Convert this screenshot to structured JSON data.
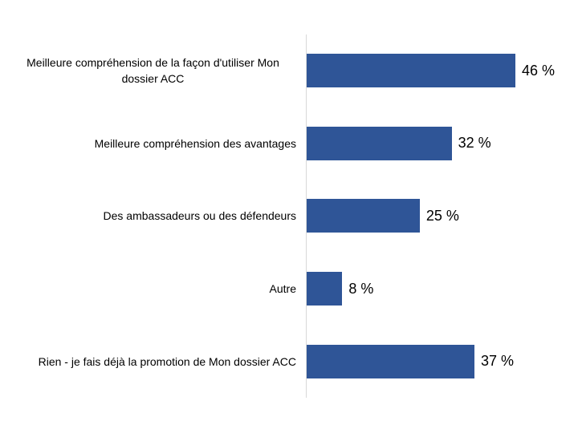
{
  "chart_data": {
    "type": "bar",
    "orientation": "horizontal",
    "title": "",
    "xlabel": "",
    "ylabel": "",
    "categories": [
      "Meilleure compréhension de la façon d'utiliser Mon dossier ACC",
      "Meilleure compréhension des avantages",
      "Des ambassadeurs ou des défendeurs",
      "Autre",
      "Rien - je fais déjà la promotion de Mon dossier ACC"
    ],
    "values": [
      46,
      32,
      25,
      8,
      37
    ],
    "value_labels": [
      "46 %",
      "32 %",
      "25 %",
      "8 %",
      "37 %"
    ],
    "unit": "%",
    "xlim": [
      0,
      50
    ],
    "grid": false,
    "legend": false,
    "bar_color": "#2f5597",
    "axis_line_color": "#d9d9d9",
    "text_color": "#000000",
    "background_color": "#ffffff"
  }
}
